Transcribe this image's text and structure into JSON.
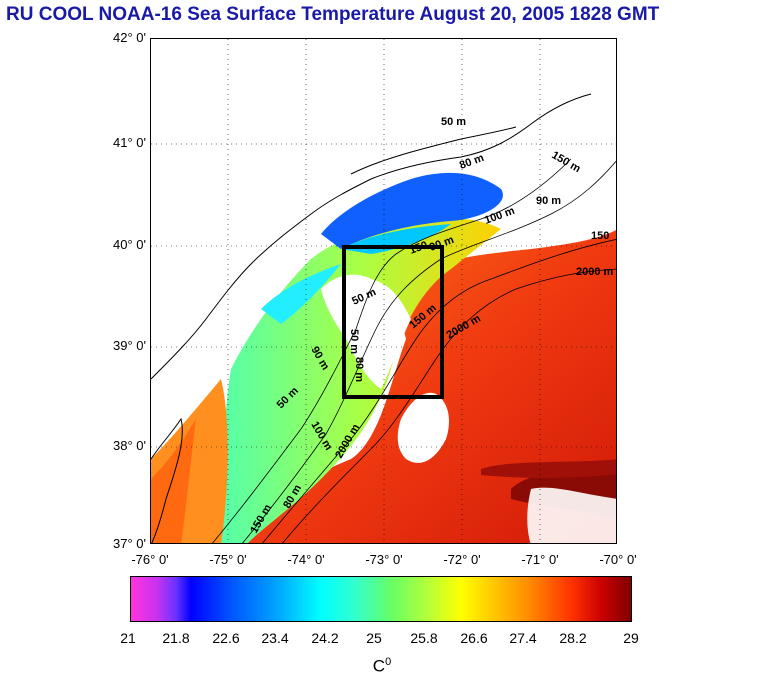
{
  "title": "RU COOL  NOAA-16 Sea Surface Temperature August 20, 2005 1828 GMT",
  "lat_labels": [
    "42° 0'",
    "41° 0'",
    "40° 0'",
    "39° 0'",
    "38° 0'",
    "37° 0'"
  ],
  "lon_labels": [
    "-76° 0'",
    "-75° 0'",
    "-74° 0'",
    "-73° 0'",
    "-72° 0'",
    "-71° 0'",
    "-70° 0'"
  ],
  "colorbar": {
    "ticks": [
      "21",
      "21.8",
      "22.6",
      "23.4",
      "24.2",
      "25",
      "25.8",
      "26.6",
      "27.4",
      "28.2",
      "29"
    ],
    "unit_base": "C",
    "unit_sup": "0"
  },
  "contour_labels": [
    "50 m",
    "80 m",
    "90 m",
    "150",
    "2000 m",
    "50 m",
    "90 m",
    "150 m",
    "2000 m",
    "50 m",
    "80 m",
    "100 m",
    "2000 m",
    "150 m",
    "80 m",
    "50 m",
    "90 m",
    "100 m",
    "150 m",
    "150"
  ],
  "colors": {
    "title": "#1a1aa8",
    "warm": "#e03010",
    "cool": "#1060ff",
    "box": "#000000"
  }
}
